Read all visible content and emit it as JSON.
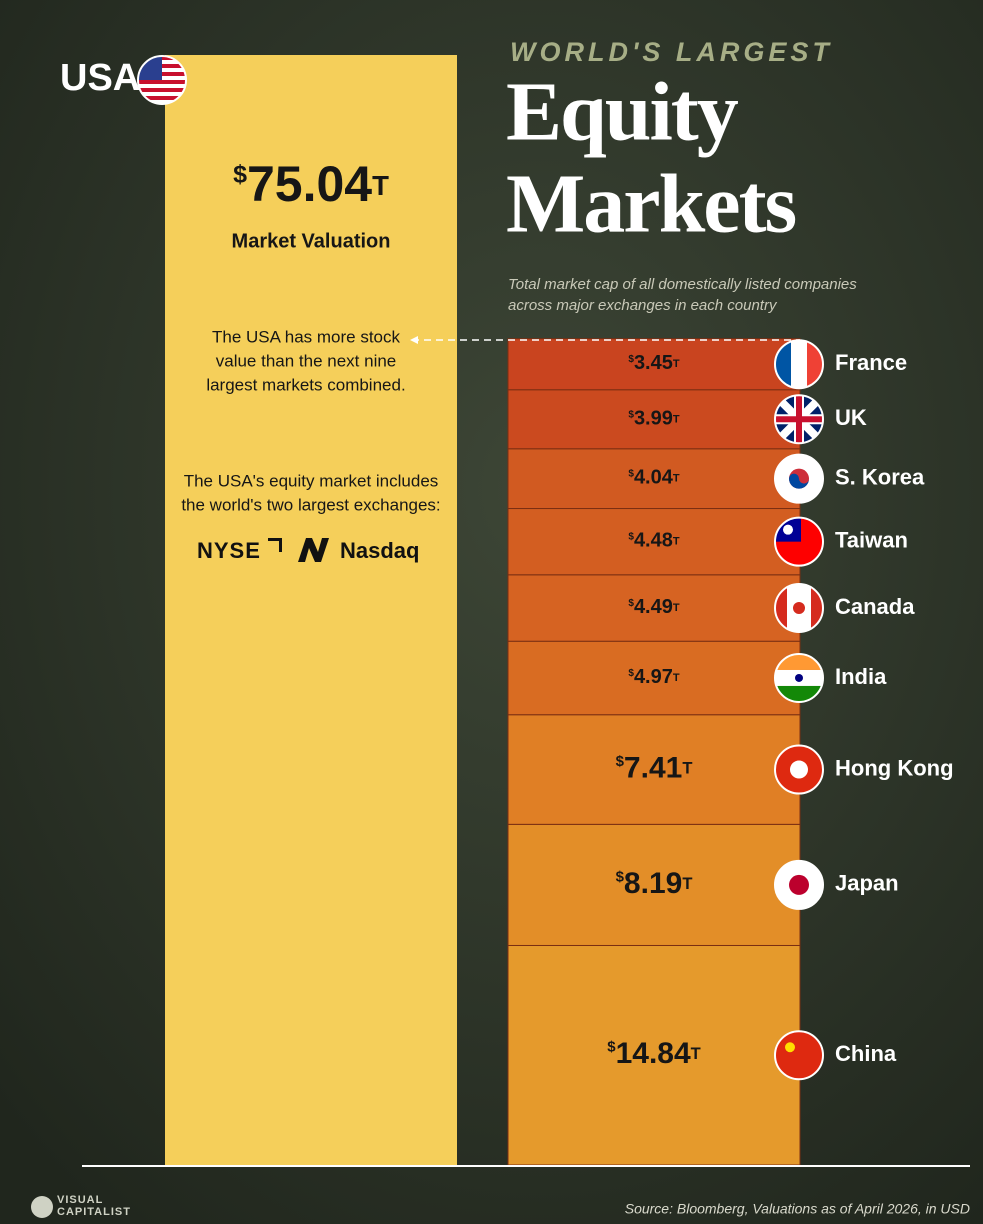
{
  "chart_data": {
    "type": "stacked-bar",
    "kicker": "WORLD'S LARGEST",
    "title_lines": [
      "Equity",
      "Markets"
    ],
    "subtitle_lines": [
      "Total market cap of all domestically listed companies",
      "across major exchanges in each country"
    ],
    "leader": {
      "name": "USA",
      "value": 75.04,
      "value_label": "$75.04T",
      "caption": "Market Valuation",
      "color": "#f5cf5a"
    },
    "annotations": [
      [
        "The USA has more stock",
        "value than the next nine",
        "largest markets combined."
      ],
      [
        "The USA's equity market includes",
        "the world's two largest exchanges:"
      ]
    ],
    "logos": [
      "NYSE",
      "Nasdaq"
    ],
    "categories": [
      "China",
      "Japan",
      "Hong Kong",
      "India",
      "Canada",
      "Taiwan",
      "S. Korea",
      "UK",
      "France"
    ],
    "values": [
      14.84,
      8.19,
      7.41,
      4.97,
      4.49,
      4.48,
      4.04,
      3.99,
      3.45
    ],
    "value_labels": [
      "$14.84T",
      "$8.19T",
      "$7.41T",
      "$4.97T",
      "$4.49T",
      "$4.48T",
      "$4.04T",
      "$3.99T",
      "$3.45T"
    ],
    "colors": [
      "#e59a2c",
      "#e38e28",
      "#e07f25",
      "#d96c22",
      "#d66322",
      "#d35e21",
      "#d15a21",
      "#cb4a1f",
      "#c9441f"
    ],
    "source": "Source: Bloomberg, Valuations as of April 2026, in USD",
    "brand_lines": [
      "VISUAL",
      "CAPITALIST"
    ]
  }
}
